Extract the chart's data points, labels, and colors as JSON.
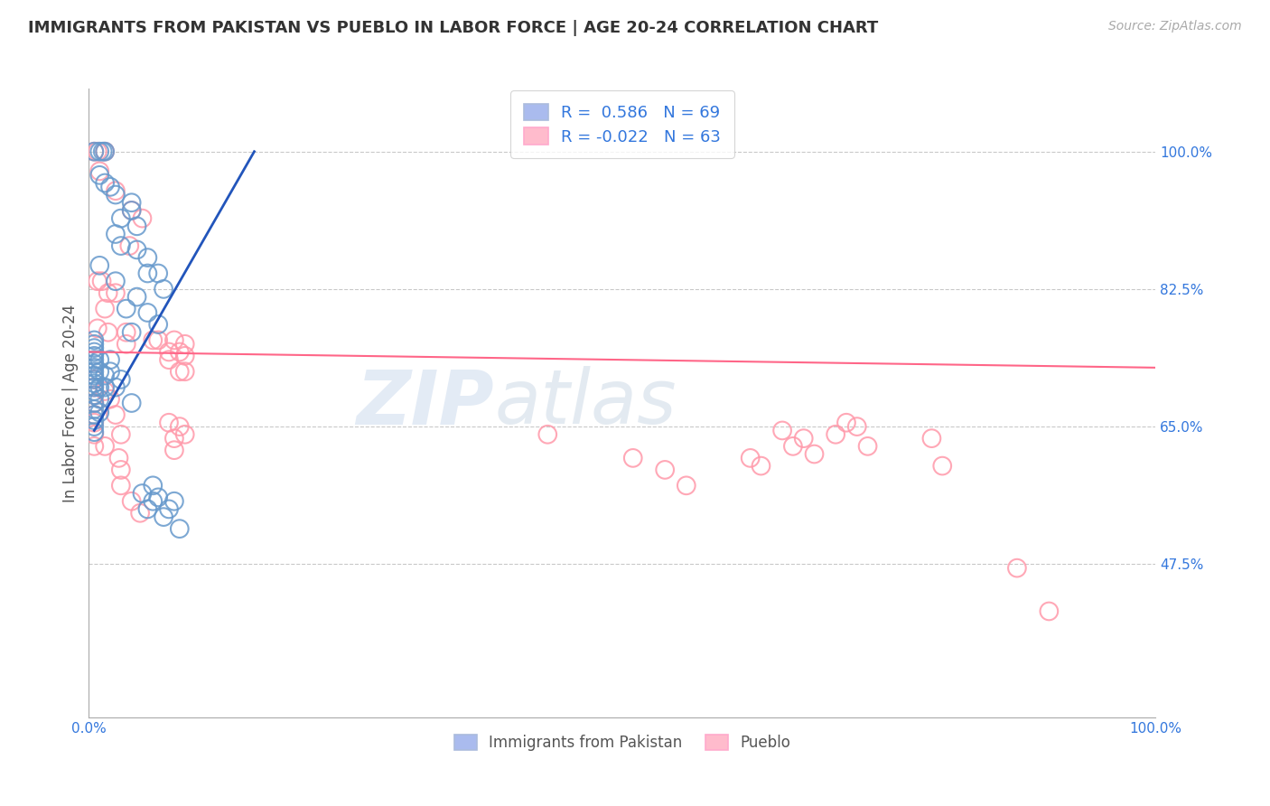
{
  "title": "IMMIGRANTS FROM PAKISTAN VS PUEBLO IN LABOR FORCE | AGE 20-24 CORRELATION CHART",
  "source": "Source: ZipAtlas.com",
  "ylabel": "In Labor Force | Age 20-24",
  "x_tick_labels": [
    "0.0%",
    "100.0%"
  ],
  "y_tick_labels_right": [
    "100.0%",
    "82.5%",
    "65.0%",
    "47.5%"
  ],
  "x_range": [
    0.0,
    1.0
  ],
  "y_range": [
    0.28,
    1.08
  ],
  "blue_color": "#6699CC",
  "pink_color": "#FF99AA",
  "blue_line_color": "#2255BB",
  "pink_line_color": "#FF6688",
  "legend_blue_fill": "#AABBEE",
  "legend_pink_fill": "#FFBBCC",
  "background_color": "#FFFFFF",
  "grid_color": "#BBBBBB",
  "title_color": "#333333",
  "r_value_color": "#3377DD",
  "blue_scatter": [
    [
      0.005,
      1.0
    ],
    [
      0.01,
      1.0
    ],
    [
      0.013,
      1.0
    ],
    [
      0.015,
      1.0
    ],
    [
      0.01,
      0.97
    ],
    [
      0.015,
      0.96
    ],
    [
      0.02,
      0.955
    ],
    [
      0.025,
      0.945
    ],
    [
      0.04,
      0.935
    ],
    [
      0.04,
      0.925
    ],
    [
      0.03,
      0.915
    ],
    [
      0.045,
      0.905
    ],
    [
      0.025,
      0.895
    ],
    [
      0.03,
      0.88
    ],
    [
      0.045,
      0.875
    ],
    [
      0.055,
      0.865
    ],
    [
      0.01,
      0.855
    ],
    [
      0.055,
      0.845
    ],
    [
      0.065,
      0.845
    ],
    [
      0.025,
      0.835
    ],
    [
      0.07,
      0.825
    ],
    [
      0.045,
      0.815
    ],
    [
      0.035,
      0.8
    ],
    [
      0.055,
      0.795
    ],
    [
      0.065,
      0.78
    ],
    [
      0.04,
      0.77
    ],
    [
      0.005,
      0.76
    ],
    [
      0.005,
      0.755
    ],
    [
      0.005,
      0.75
    ],
    [
      0.005,
      0.745
    ],
    [
      0.005,
      0.74
    ],
    [
      0.005,
      0.735
    ],
    [
      0.005,
      0.73
    ],
    [
      0.005,
      0.725
    ],
    [
      0.005,
      0.72
    ],
    [
      0.005,
      0.715
    ],
    [
      0.005,
      0.71
    ],
    [
      0.005,
      0.705
    ],
    [
      0.005,
      0.7
    ],
    [
      0.005,
      0.695
    ],
    [
      0.005,
      0.69
    ],
    [
      0.005,
      0.68
    ],
    [
      0.005,
      0.672
    ],
    [
      0.005,
      0.665
    ],
    [
      0.005,
      0.658
    ],
    [
      0.005,
      0.65
    ],
    [
      0.005,
      0.643
    ],
    [
      0.01,
      0.735
    ],
    [
      0.01,
      0.72
    ],
    [
      0.01,
      0.7
    ],
    [
      0.01,
      0.685
    ],
    [
      0.01,
      0.668
    ],
    [
      0.015,
      0.715
    ],
    [
      0.015,
      0.7
    ],
    [
      0.02,
      0.735
    ],
    [
      0.02,
      0.72
    ],
    [
      0.025,
      0.7
    ],
    [
      0.03,
      0.71
    ],
    [
      0.04,
      0.68
    ],
    [
      0.05,
      0.565
    ],
    [
      0.055,
      0.545
    ],
    [
      0.06,
      0.575
    ],
    [
      0.06,
      0.555
    ],
    [
      0.065,
      0.56
    ],
    [
      0.07,
      0.535
    ],
    [
      0.075,
      0.545
    ],
    [
      0.08,
      0.555
    ],
    [
      0.085,
      0.52
    ]
  ],
  "pink_scatter": [
    [
      0.005,
      1.0
    ],
    [
      0.008,
      1.0
    ],
    [
      0.015,
      1.0
    ],
    [
      0.01,
      0.975
    ],
    [
      0.025,
      0.95
    ],
    [
      0.04,
      0.925
    ],
    [
      0.05,
      0.915
    ],
    [
      0.038,
      0.88
    ],
    [
      0.008,
      0.835
    ],
    [
      0.012,
      0.835
    ],
    [
      0.018,
      0.82
    ],
    [
      0.025,
      0.82
    ],
    [
      0.015,
      0.8
    ],
    [
      0.008,
      0.775
    ],
    [
      0.018,
      0.77
    ],
    [
      0.035,
      0.77
    ],
    [
      0.035,
      0.755
    ],
    [
      0.06,
      0.76
    ],
    [
      0.065,
      0.76
    ],
    [
      0.075,
      0.745
    ],
    [
      0.075,
      0.735
    ],
    [
      0.08,
      0.76
    ],
    [
      0.085,
      0.745
    ],
    [
      0.09,
      0.755
    ],
    [
      0.09,
      0.74
    ],
    [
      0.085,
      0.72
    ],
    [
      0.09,
      0.72
    ],
    [
      0.005,
      0.71
    ],
    [
      0.005,
      0.7
    ],
    [
      0.005,
      0.69
    ],
    [
      0.005,
      0.68
    ],
    [
      0.005,
      0.665
    ],
    [
      0.005,
      0.655
    ],
    [
      0.005,
      0.64
    ],
    [
      0.005,
      0.625
    ],
    [
      0.015,
      0.695
    ],
    [
      0.02,
      0.685
    ],
    [
      0.025,
      0.665
    ],
    [
      0.03,
      0.64
    ],
    [
      0.015,
      0.625
    ],
    [
      0.028,
      0.61
    ],
    [
      0.03,
      0.595
    ],
    [
      0.03,
      0.575
    ],
    [
      0.04,
      0.555
    ],
    [
      0.048,
      0.54
    ],
    [
      0.075,
      0.655
    ],
    [
      0.08,
      0.635
    ],
    [
      0.08,
      0.62
    ],
    [
      0.085,
      0.65
    ],
    [
      0.09,
      0.64
    ],
    [
      0.43,
      0.64
    ],
    [
      0.51,
      0.61
    ],
    [
      0.54,
      0.595
    ],
    [
      0.56,
      0.575
    ],
    [
      0.62,
      0.61
    ],
    [
      0.63,
      0.6
    ],
    [
      0.65,
      0.645
    ],
    [
      0.66,
      0.625
    ],
    [
      0.67,
      0.635
    ],
    [
      0.68,
      0.615
    ],
    [
      0.7,
      0.64
    ],
    [
      0.71,
      0.655
    ],
    [
      0.72,
      0.65
    ],
    [
      0.73,
      0.625
    ],
    [
      0.79,
      0.635
    ],
    [
      0.8,
      0.6
    ],
    [
      0.87,
      0.47
    ],
    [
      0.9,
      0.415
    ]
  ],
  "blue_line_x": [
    0.005,
    0.155
  ],
  "blue_line_y": [
    0.645,
    1.0
  ],
  "pink_line_x": [
    0.0,
    1.0
  ],
  "pink_line_y": [
    0.745,
    0.725
  ],
  "watermark_zip": "ZIP",
  "watermark_atlas": "atlas",
  "bottom_labels": [
    "Immigrants from Pakistan",
    "Pueblo"
  ],
  "figsize": [
    14.06,
    8.92
  ],
  "dpi": 100
}
